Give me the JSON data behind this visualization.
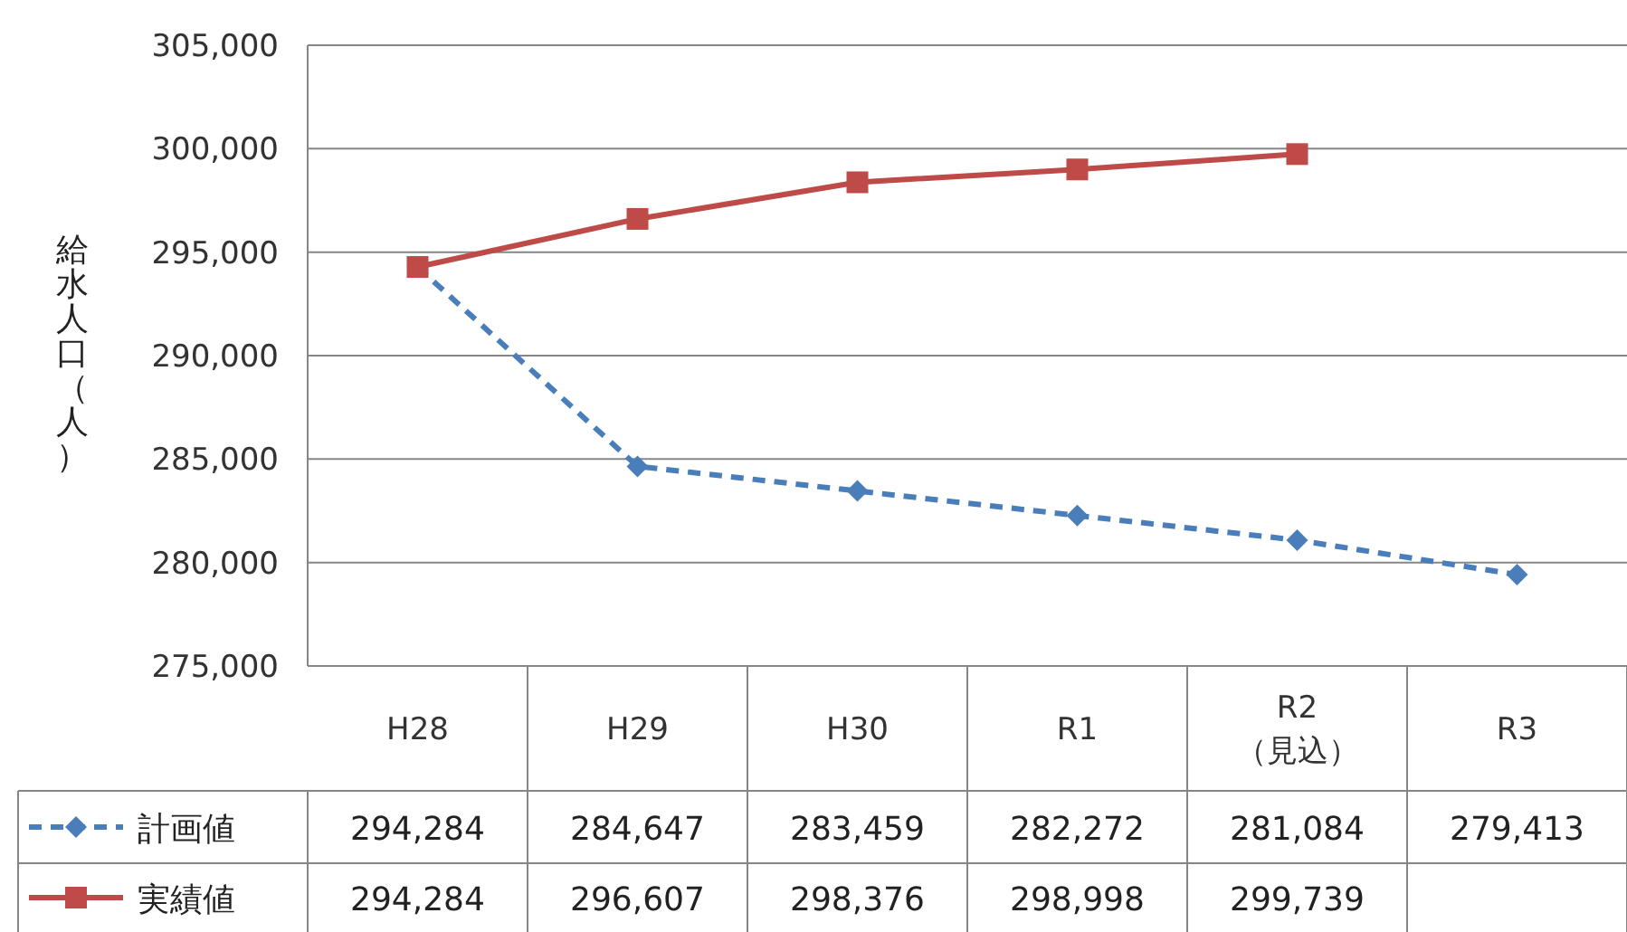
{
  "chart_data": {
    "type": "line",
    "ylabel": "給水人口（人）",
    "categories": [
      "H28",
      "H29",
      "H30",
      "R1",
      "R2\n（見込）",
      "R3"
    ],
    "ylim": [
      275000,
      305000
    ],
    "yticks": [
      {
        "value": 275000,
        "label": "275,000"
      },
      {
        "value": 280000,
        "label": "280,000"
      },
      {
        "value": 285000,
        "label": "285,000"
      },
      {
        "value": 290000,
        "label": "290,000"
      },
      {
        "value": 295000,
        "label": "295,000"
      },
      {
        "value": 300000,
        "label": "300,000"
      },
      {
        "value": 305000,
        "label": "305,000"
      }
    ],
    "grid": "y",
    "legend": "bottom",
    "series": [
      {
        "name": "計画値",
        "color": "#4a7ebb",
        "marker": "diamond",
        "line_style": "dashed",
        "values": [
          294284,
          284647,
          283459,
          282272,
          281084,
          279413
        ],
        "value_labels": [
          "294,284",
          "284,647",
          "283,459",
          "282,272",
          "281,084",
          "279,413"
        ]
      },
      {
        "name": "実績値",
        "color": "#be4b48",
        "marker": "square",
        "line_style": "solid",
        "values": [
          294284,
          296607,
          298376,
          298998,
          299739,
          null
        ],
        "value_labels": [
          "294,284",
          "296,607",
          "298,376",
          "298,998",
          "299,739",
          null
        ]
      }
    ]
  }
}
